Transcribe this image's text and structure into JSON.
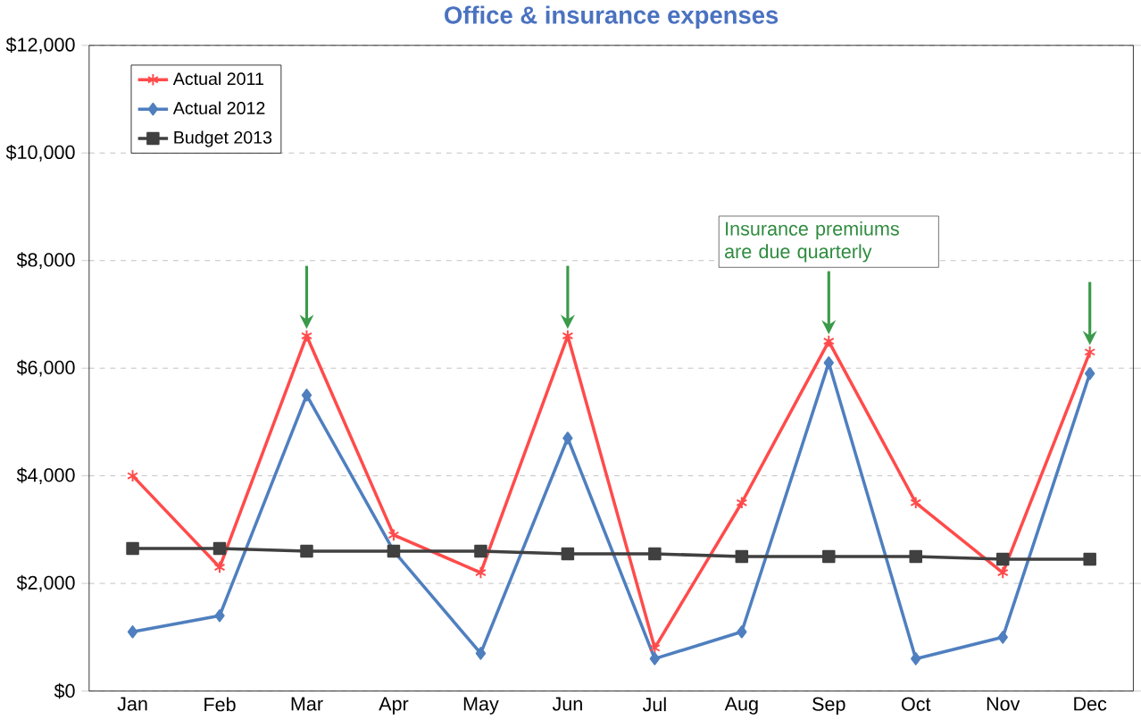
{
  "chart_data": {
    "type": "line",
    "title": "Office & insurance expenses",
    "categories": [
      "Jan",
      "Feb",
      "Mar",
      "Apr",
      "May",
      "Jun",
      "Jul",
      "Aug",
      "Sep",
      "Oct",
      "Nov",
      "Dec"
    ],
    "series": [
      {
        "name": "Actual 2011",
        "color": "#ff4b4b",
        "marker": "cross",
        "values": [
          4000,
          2300,
          6600,
          2900,
          2200,
          6600,
          800,
          3500,
          6500,
          3500,
          2200,
          6300
        ]
      },
      {
        "name": "Actual 2012",
        "color": "#4f7fbf",
        "marker": "diamond",
        "values": [
          1100,
          1400,
          5500,
          2600,
          700,
          4700,
          600,
          1100,
          6100,
          600,
          1000,
          5900
        ]
      },
      {
        "name": "Budget 2013",
        "color": "#404040",
        "marker": "square",
        "values": [
          2650,
          2650,
          2600,
          2600,
          2600,
          2550,
          2550,
          2500,
          2500,
          2500,
          2450,
          2450
        ]
      }
    ],
    "ylim": [
      0,
      12000
    ],
    "yticks": [
      {
        "value": 0,
        "label": "$0"
      },
      {
        "value": 2000,
        "label": "$2,000"
      },
      {
        "value": 4000,
        "label": "$4,000"
      },
      {
        "value": 6000,
        "label": "$6,000"
      },
      {
        "value": 8000,
        "label": "$8,000"
      },
      {
        "value": 10000,
        "label": "$10,000"
      },
      {
        "value": 12000,
        "label": "$12,000"
      }
    ],
    "grid": "y",
    "legend": "top left",
    "annotations": [
      {
        "text": "Insurance premiums are due quarterly",
        "x": "Sep",
        "y": 6500
      }
    ]
  }
}
